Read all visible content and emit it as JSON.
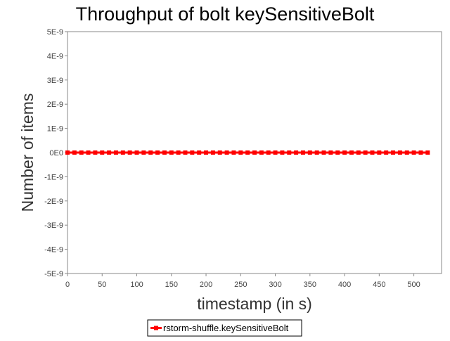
{
  "chart_data": {
    "type": "line",
    "title": "Throughput of bolt keySensitiveBolt",
    "xlabel": "timestamp (in s)",
    "ylabel": "Number of items",
    "xlim": [
      0,
      540
    ],
    "ylim": [
      -5e-09,
      5e-09
    ],
    "x_ticks": [
      0,
      50,
      100,
      150,
      200,
      250,
      300,
      350,
      400,
      450,
      500
    ],
    "x_tick_labels": [
      "0",
      "50",
      "100",
      "150",
      "200",
      "250",
      "300",
      "350",
      "400",
      "450",
      "500"
    ],
    "y_ticks": [
      5e-09,
      4e-09,
      3e-09,
      2e-09,
      1e-09,
      0,
      -1e-09,
      -2e-09,
      -3e-09,
      -4e-09,
      -5e-09
    ],
    "y_tick_labels": [
      "5E-9",
      "4E-9",
      "3E-9",
      "2E-9",
      "1E-9",
      "0E0",
      "-1E-9",
      "-2E-9",
      "-3E-9",
      "-4E-9",
      "-5E-9"
    ],
    "grid": false,
    "legend_position": "bottom",
    "series": [
      {
        "name": "rstorm-shuffle.keySensitiveBolt",
        "color": "#ff0000",
        "marker": "square",
        "x": [
          0,
          10,
          20,
          30,
          40,
          50,
          60,
          70,
          80,
          90,
          100,
          110,
          120,
          130,
          140,
          150,
          160,
          170,
          180,
          190,
          200,
          210,
          220,
          230,
          240,
          250,
          260,
          270,
          280,
          290,
          300,
          310,
          320,
          330,
          340,
          350,
          360,
          370,
          380,
          390,
          400,
          410,
          420,
          430,
          440,
          450,
          460,
          470,
          480,
          490,
          500,
          510,
          520
        ],
        "y": [
          0,
          0,
          0,
          0,
          0,
          0,
          0,
          0,
          0,
          0,
          0,
          0,
          0,
          0,
          0,
          0,
          0,
          0,
          0,
          0,
          0,
          0,
          0,
          0,
          0,
          0,
          0,
          0,
          0,
          0,
          0,
          0,
          0,
          0,
          0,
          0,
          0,
          0,
          0,
          0,
          0,
          0,
          0,
          0,
          0,
          0,
          0,
          0,
          0,
          0,
          0,
          0,
          0
        ]
      }
    ]
  }
}
